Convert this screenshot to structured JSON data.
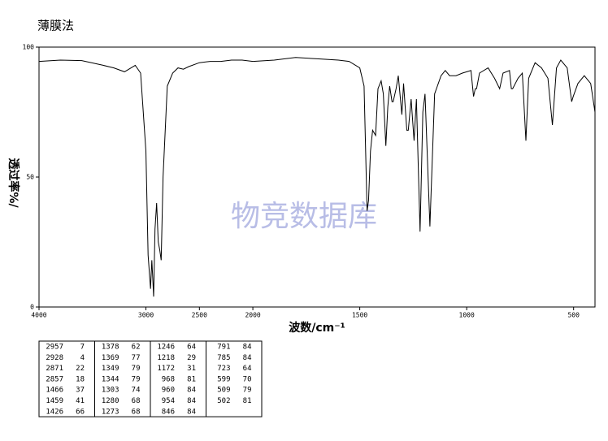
{
  "chart_data": {
    "type": "line",
    "title": "薄膜法",
    "watermark": "物竞数据库",
    "x_label": "波数/cm⁻¹",
    "y_label": "透过率%/",
    "xlim": [
      4000,
      400
    ],
    "x_scale_break": 2000,
    "ylim": [
      0,
      100
    ],
    "xticks": [
      4000,
      3000,
      2500,
      2000,
      1500,
      1000,
      500
    ],
    "yticks": [
      0,
      50,
      100
    ],
    "color": "#000000",
    "x": [
      4000,
      3800,
      3600,
      3400,
      3300,
      3200,
      3100,
      3050,
      3000,
      2980,
      2957,
      2945,
      2935,
      2928,
      2915,
      2900,
      2885,
      2871,
      2857,
      2840,
      2800,
      2750,
      2700,
      2650,
      2600,
      2500,
      2400,
      2300,
      2200,
      2100,
      2000,
      1900,
      1800,
      1700,
      1600,
      1550,
      1500,
      1480,
      1466,
      1459,
      1450,
      1440,
      1426,
      1415,
      1400,
      1390,
      1378,
      1369,
      1360,
      1349,
      1344,
      1330,
      1320,
      1303,
      1295,
      1280,
      1273,
      1260,
      1246,
      1235,
      1218,
      1205,
      1195,
      1172,
      1150,
      1120,
      1100,
      1080,
      1050,
      1020,
      1000,
      980,
      968,
      960,
      954,
      940,
      900,
      870,
      846,
      830,
      800,
      791,
      785,
      760,
      740,
      723,
      710,
      680,
      650,
      620,
      599,
      580,
      560,
      530,
      509,
      502,
      480,
      450,
      420,
      400
    ],
    "values": [
      94.5,
      95,
      94.8,
      93,
      92,
      90.5,
      93,
      90,
      60,
      20,
      7,
      18,
      10,
      4,
      30,
      40,
      25,
      22,
      18,
      50,
      85,
      90,
      92,
      91.5,
      92.5,
      94,
      94.5,
      94.5,
      95,
      95,
      94.5,
      95,
      96,
      95.5,
      95,
      94.5,
      92,
      85,
      37,
      41,
      60,
      68,
      66,
      84,
      87,
      82,
      62,
      77,
      85,
      79,
      79,
      84,
      89,
      74,
      86,
      68,
      68,
      80,
      64,
      80,
      29,
      75,
      82,
      31,
      82,
      89,
      91,
      89,
      89,
      90,
      90.5,
      91,
      81,
      84,
      84,
      90,
      92,
      88,
      84,
      90,
      91,
      84,
      84,
      88,
      90,
      64,
      88,
      94,
      92,
      88,
      70,
      92,
      95,
      92,
      79,
      81,
      86,
      89,
      86,
      75
    ]
  },
  "table": {
    "columns": [
      [
        [
          2957,
          7
        ],
        [
          2928,
          4
        ],
        [
          2871,
          22
        ],
        [
          2857,
          18
        ],
        [
          1466,
          37
        ],
        [
          1459,
          41
        ],
        [
          1426,
          66
        ]
      ],
      [
        [
          1378,
          62
        ],
        [
          1369,
          77
        ],
        [
          1349,
          79
        ],
        [
          1344,
          79
        ],
        [
          1303,
          74
        ],
        [
          1280,
          68
        ],
        [
          1273,
          68
        ]
      ],
      [
        [
          1246,
          64
        ],
        [
          1218,
          29
        ],
        [
          1172,
          31
        ],
        [
          968,
          81
        ],
        [
          960,
          84
        ],
        [
          954,
          84
        ],
        [
          846,
          84
        ]
      ],
      [
        [
          791,
          84
        ],
        [
          785,
          84
        ],
        [
          723,
          64
        ],
        [
          599,
          70
        ],
        [
          509,
          79
        ],
        [
          502,
          81
        ]
      ]
    ]
  }
}
